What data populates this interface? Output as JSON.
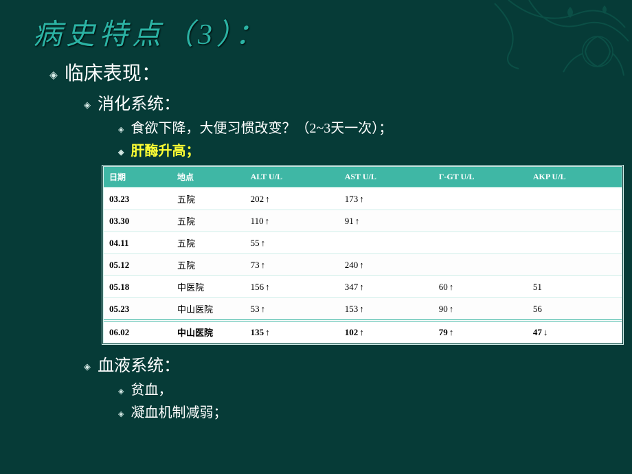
{
  "title": "病史特点（3）：",
  "sections": {
    "clinical_heading": "临床表现：",
    "digestive_heading": "消化系统：",
    "digestive_items": [
      "食欲下降，大便习惯改变？（2~3天一次）；",
      "肝酶升高；"
    ],
    "blood_heading": "血液系统：",
    "blood_items": [
      "贫血，",
      "凝血机制减弱；"
    ]
  },
  "table": {
    "columns": [
      "日期",
      "地点",
      "ALT U/L",
      "AST U/L",
      "Γ-GT U/L",
      "AKP U/L"
    ],
    "rows": [
      {
        "date": "03.23",
        "place": "五院",
        "alt": "202",
        "alt_dir": "up",
        "ast": "173",
        "ast_dir": "up",
        "ggt": "",
        "ggt_dir": "",
        "akp": "",
        "akp_dir": ""
      },
      {
        "date": "03.30",
        "place": "五院",
        "alt": "110",
        "alt_dir": "up",
        "ast": "91",
        "ast_dir": "up",
        "ggt": "",
        "ggt_dir": "",
        "akp": "",
        "akp_dir": ""
      },
      {
        "date": "04.11",
        "place": "五院",
        "alt": "55",
        "alt_dir": "up",
        "ast": "",
        "ast_dir": "",
        "ggt": "",
        "ggt_dir": "",
        "akp": "",
        "akp_dir": ""
      },
      {
        "date": "05.12",
        "place": "五院",
        "alt": "73",
        "alt_dir": "up",
        "ast": "240",
        "ast_dir": "up",
        "ggt": "",
        "ggt_dir": "",
        "akp": "",
        "akp_dir": ""
      },
      {
        "date": "05.18",
        "place": "中医院",
        "alt": "156",
        "alt_dir": "up",
        "ast": "347",
        "ast_dir": "up",
        "ggt": "60",
        "ggt_dir": "up",
        "akp": "51",
        "akp_dir": ""
      },
      {
        "date": "05.23",
        "place": "中山医院",
        "alt": "53",
        "alt_dir": "up",
        "ast": "153",
        "ast_dir": "up",
        "ggt": "90",
        "ggt_dir": "up",
        "akp": "56",
        "akp_dir": ""
      },
      {
        "date": "06.02",
        "place": "中山医院",
        "alt": "135",
        "alt_dir": "up",
        "ast": "102",
        "ast_dir": "up",
        "ggt": "79",
        "ggt_dir": "up",
        "akp": "47",
        "akp_dir": "down",
        "last": true
      }
    ],
    "header_bg": "#3fb7a5",
    "header_fg": "#ffffff",
    "row_bg": "#ffffff",
    "border_color": "#cfeee9",
    "font_size_header": 12,
    "font_size_cell": 13
  },
  "styling": {
    "background_color": "#063b37",
    "title_color": "#2bb3a4",
    "title_fontsize": 42,
    "body_color": "#ffffff",
    "highlight_color": "#ffff33",
    "decoration_color": "#0f6d5e"
  }
}
